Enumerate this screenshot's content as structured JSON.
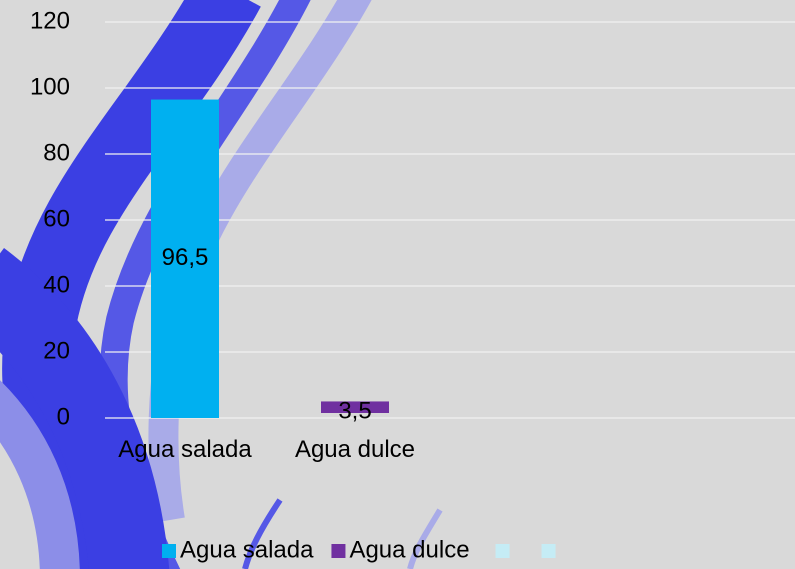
{
  "chart_data": {
    "type": "bar",
    "categories": [
      "Agua salada",
      "Agua dulce",
      null,
      null
    ],
    "series": [
      {
        "name": "Agua salada",
        "color": "#00b0f0",
        "values": [
          96.5,
          null,
          null,
          null
        ],
        "value_labels": [
          "96,5",
          null,
          null,
          null
        ]
      },
      {
        "name": "Agua dulce",
        "color": "#7030a0",
        "values": [
          null,
          3.5,
          null,
          null
        ],
        "value_labels": [
          null,
          "3,5",
          null,
          null
        ]
      }
    ],
    "ylim": [
      0,
      120
    ],
    "yticks": [
      0,
      20,
      40,
      60,
      80,
      100,
      120
    ],
    "grid": true,
    "legend": "bottom"
  }
}
